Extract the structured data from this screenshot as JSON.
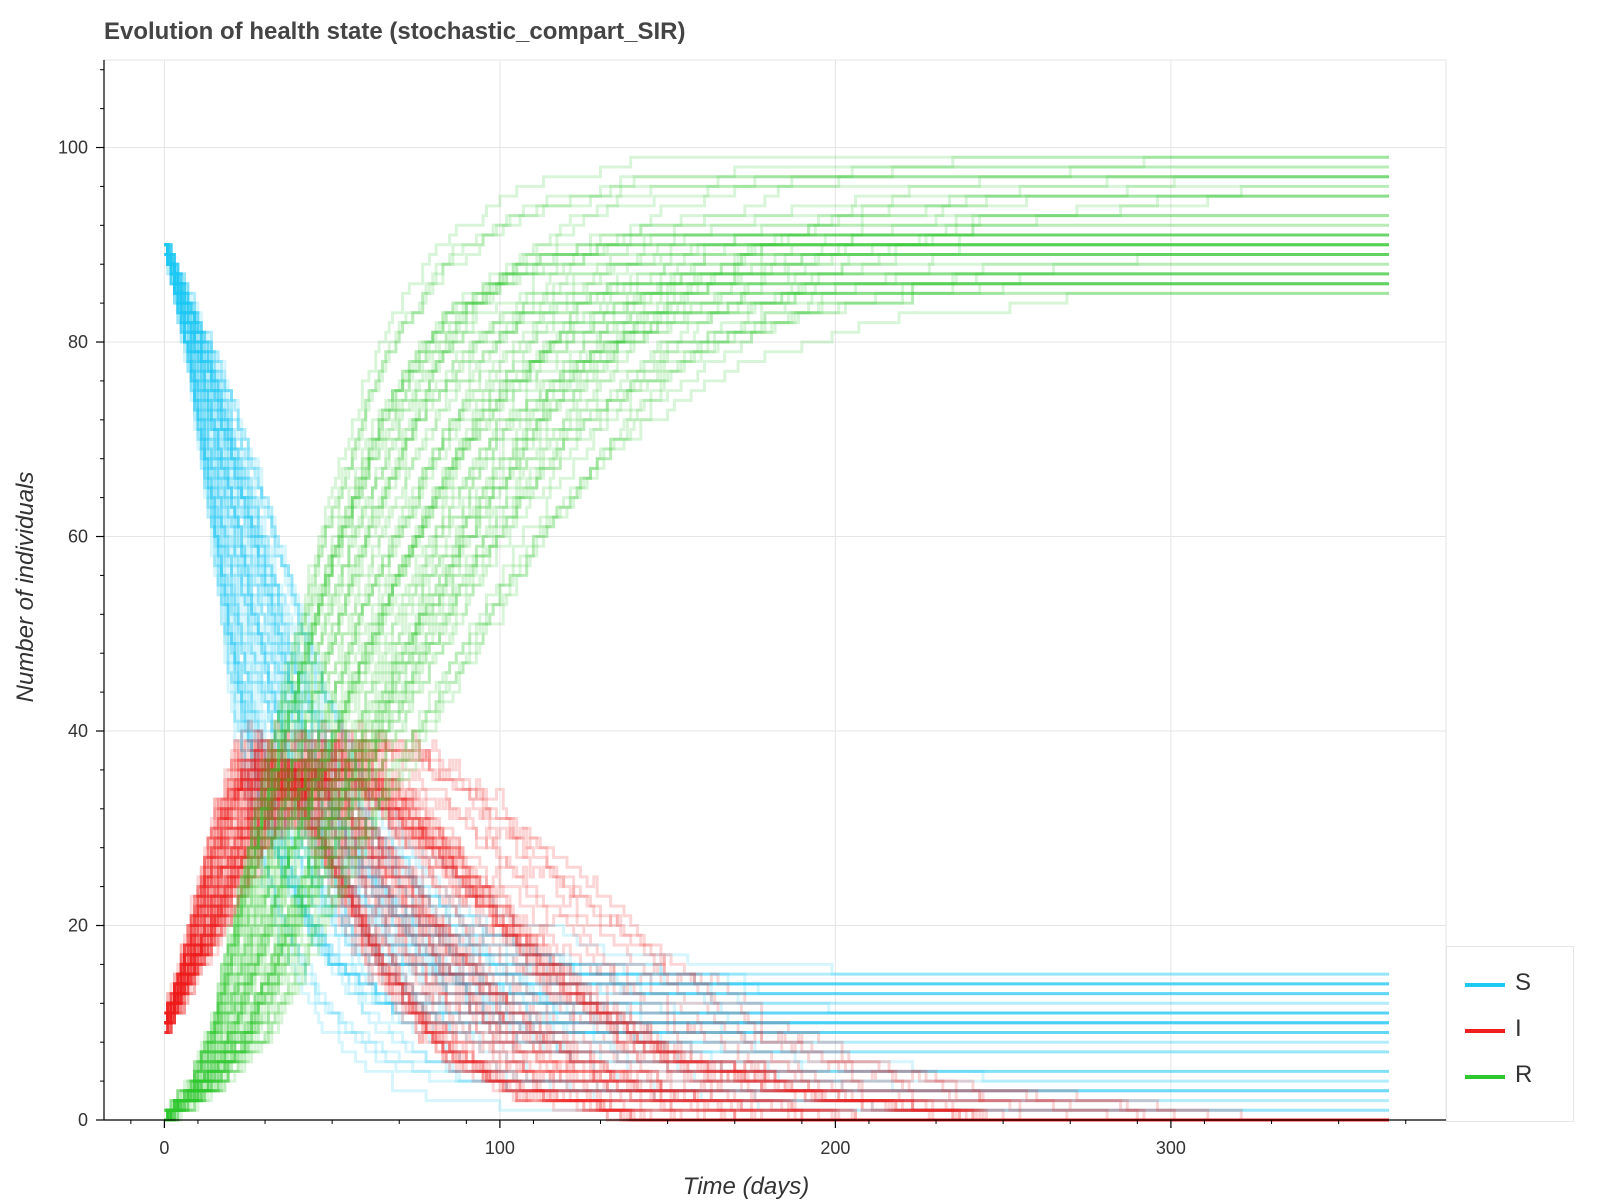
{
  "chart_data": {
    "type": "line",
    "title": "Evolution of health state (stochastic_compart_SIR)",
    "xlabel": "Time (days)",
    "ylabel": "Number of individuals",
    "xlim": [
      -18,
      382
    ],
    "ylim": [
      0,
      109
    ],
    "xticks": [
      0,
      100,
      200,
      300
    ],
    "yticks": [
      0,
      20,
      40,
      60,
      80,
      100
    ],
    "grid": true,
    "legend_position": "bottom-right",
    "runs": 60,
    "t_end": 365,
    "series": [
      {
        "name": "S",
        "color": "#1ec8f5",
        "x": [
          0,
          10,
          20,
          30,
          40,
          50,
          60,
          70,
          80,
          90,
          100,
          120,
          150,
          200,
          365
        ],
        "values": [
          90,
          78,
          62,
          44,
          31,
          23,
          18,
          14,
          12,
          10,
          9,
          8,
          7,
          6,
          6
        ]
      },
      {
        "name": "I",
        "color": "#f01e1e",
        "x": [
          0,
          10,
          20,
          30,
          40,
          50,
          60,
          70,
          80,
          90,
          100,
          120,
          150,
          200,
          365
        ],
        "values": [
          10,
          19,
          29,
          36,
          38,
          36,
          32,
          27,
          22,
          17,
          13,
          7,
          3,
          1,
          0
        ]
      },
      {
        "name": "R",
        "color": "#2ec82e",
        "x": [
          0,
          10,
          20,
          30,
          40,
          50,
          60,
          70,
          80,
          90,
          100,
          120,
          150,
          200,
          365
        ],
        "values": [
          0,
          3,
          9,
          20,
          31,
          41,
          50,
          59,
          66,
          73,
          78,
          85,
          90,
          93,
          94
        ]
      }
    ]
  }
}
